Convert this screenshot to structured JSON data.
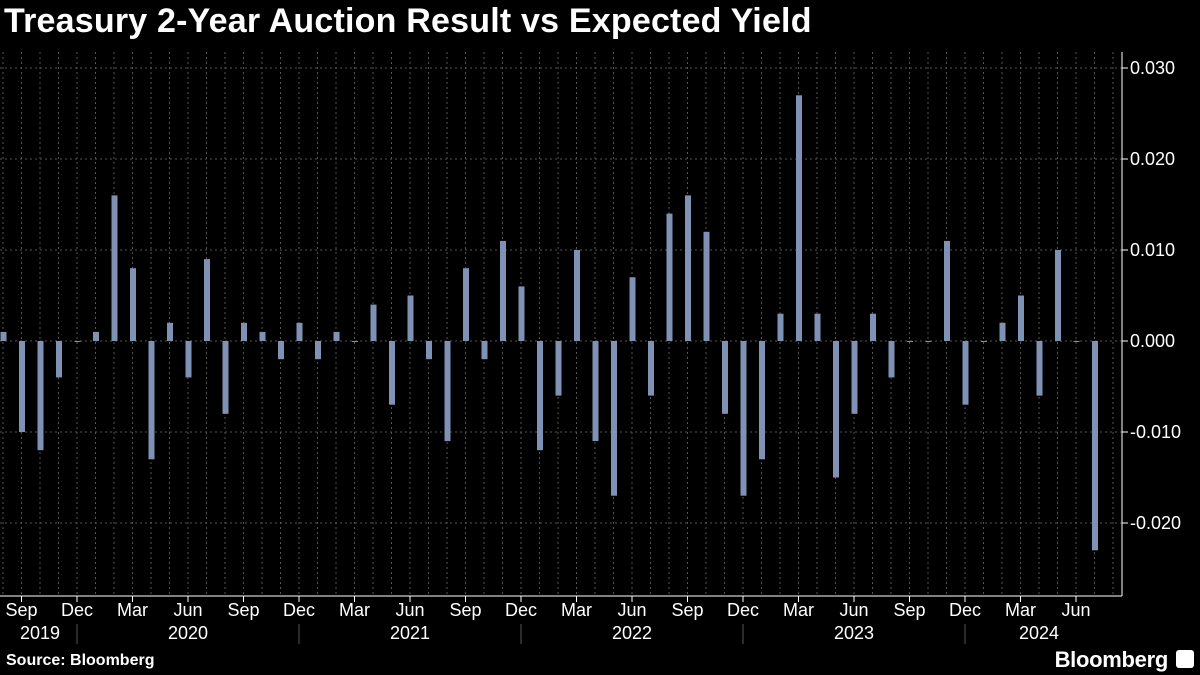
{
  "title": "Treasury 2-Year Auction Result vs Expected Yield",
  "source": "Source: Bloomberg",
  "brand": "Bloomberg",
  "colors": {
    "background": "#000000",
    "bar": "#7f92b4",
    "grid": "#555555",
    "text": "#ffffff"
  },
  "chart_data": {
    "type": "bar",
    "grid": true,
    "y_axis_position": "right",
    "ylim": [
      -0.025,
      0.031
    ],
    "yticks": [
      "0.030",
      "0.020",
      "0.010",
      "0.000",
      "-0.010",
      "-0.020"
    ],
    "ytick_values": [
      0.03,
      0.02,
      0.01,
      0.0,
      -0.01,
      -0.02
    ],
    "x_month_labels": [
      "Sep",
      "Dec",
      "Mar",
      "Jun",
      "Sep",
      "Dec",
      "Mar",
      "Jun",
      "Sep",
      "Dec",
      "Mar",
      "Jun",
      "Sep",
      "Dec",
      "Mar",
      "Jun",
      "Sep",
      "Dec",
      "Mar",
      "Jun"
    ],
    "x_year_labels": [
      "2019",
      "2020",
      "2021",
      "2022",
      "2023",
      "2024"
    ],
    "x_start": "2019-08",
    "x_end": "2024-08",
    "values": [
      0.001,
      -0.01,
      -0.012,
      -0.004,
      0.0,
      0.001,
      0.016,
      0.008,
      -0.013,
      0.002,
      -0.004,
      0.009,
      -0.008,
      0.002,
      0.001,
      -0.002,
      0.002,
      -0.002,
      0.001,
      0.0,
      0.004,
      -0.007,
      0.005,
      -0.002,
      -0.011,
      0.008,
      -0.002,
      0.011,
      0.006,
      -0.012,
      -0.006,
      0.01,
      -0.011,
      -0.017,
      0.007,
      -0.006,
      0.014,
      0.016,
      0.012,
      -0.008,
      -0.017,
      -0.013,
      0.003,
      0.027,
      0.003,
      -0.015,
      -0.008,
      0.003,
      -0.004,
      0.0,
      0.0,
      0.011,
      -0.007,
      0.0,
      0.002,
      0.005,
      -0.006,
      0.01,
      0.0,
      -0.023
    ]
  }
}
